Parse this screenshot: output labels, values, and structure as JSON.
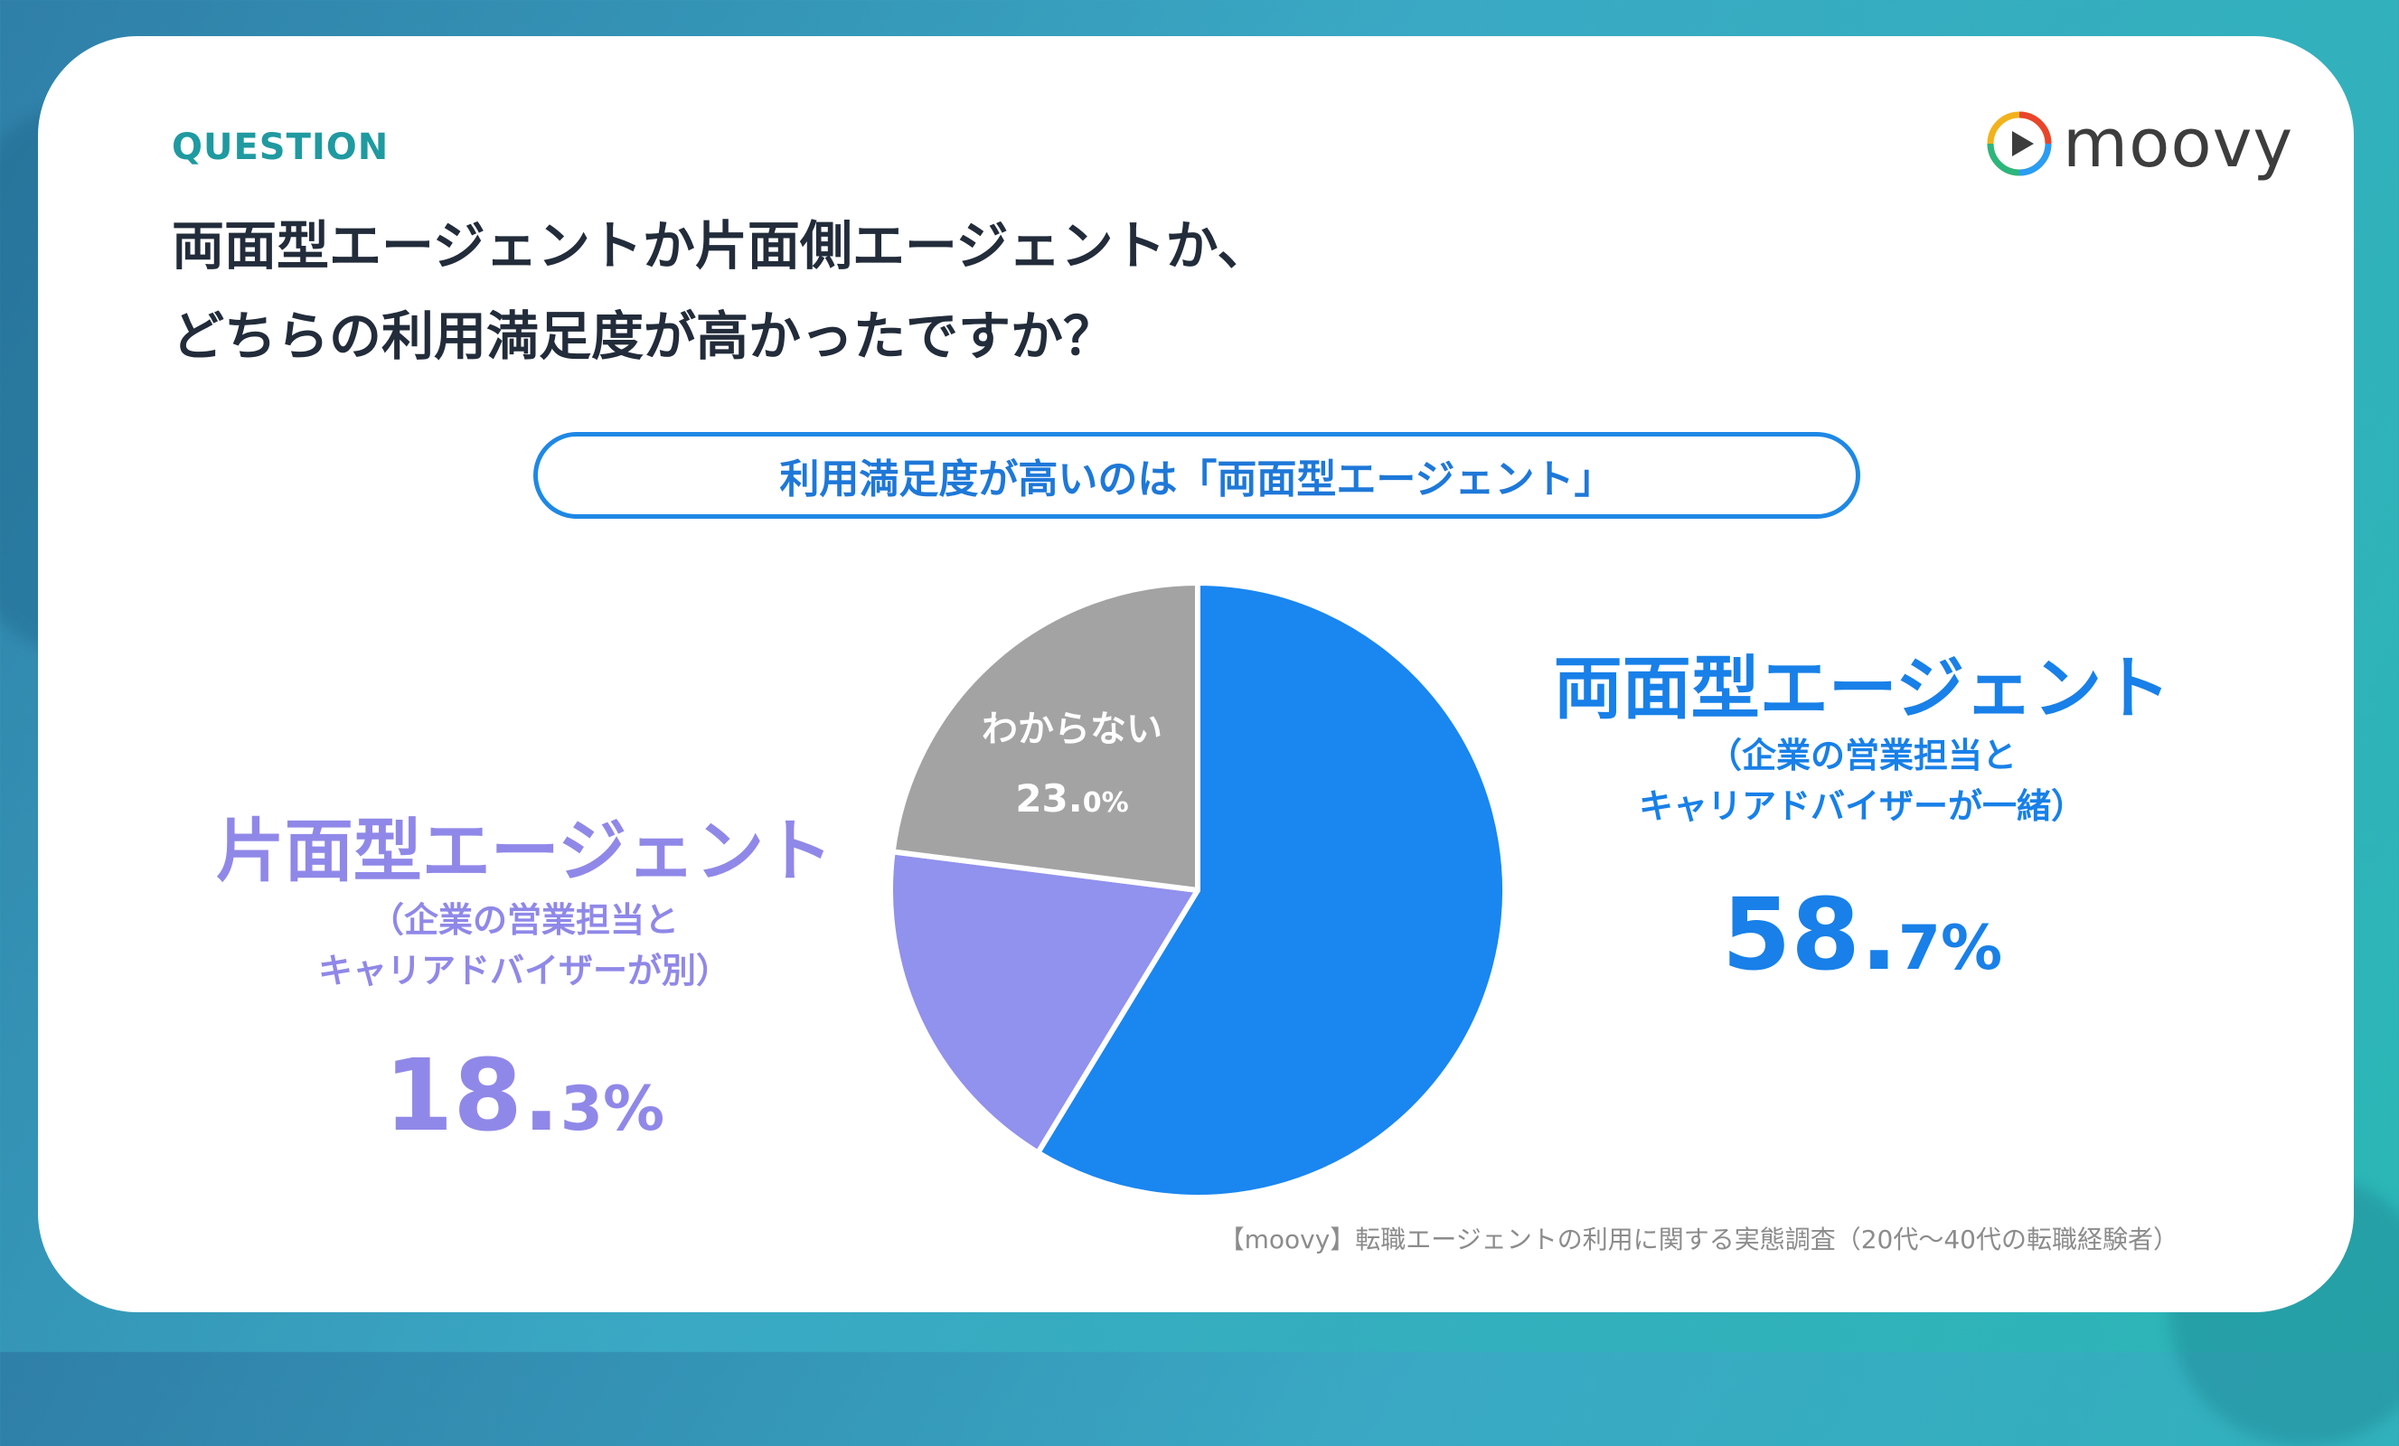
{
  "header": {
    "question_label": "QUESTION",
    "title_line1": "両面型エージェントか片面側エージェントか、",
    "title_line2": "どちらの利用満足度が高かったですか？"
  },
  "logo": {
    "text": "moovy"
  },
  "banner": {
    "text": "利用満足度が高いのは「両面型エージェント」"
  },
  "chart_data": {
    "type": "pie",
    "categories": [
      "両面型エージェント",
      "片面型エージェント",
      "わからない"
    ],
    "values": [
      58.7,
      18.3,
      23.0
    ],
    "colors": [
      "#1a86f0",
      "#9191ee",
      "#a3a3a3"
    ],
    "slices": [
      {
        "name": "両面型エージェント",
        "description_line1": "（企業の営業担当と",
        "description_line2": "キャリアドバイザーが一緒）",
        "value": 58.7,
        "pct_int": "58.",
        "pct_dec": "7",
        "pct_sign": "%",
        "color": "#1a86f0"
      },
      {
        "name": "片面型エージェント",
        "description_line1": "（企業の営業担当と",
        "description_line2": "キャリアドバイザーが別）",
        "value": 18.3,
        "pct_int": "18.",
        "pct_dec": "3",
        "pct_sign": "%",
        "color": "#9191ee"
      },
      {
        "name": "わからない",
        "value": 23.0,
        "pct_int": "23.",
        "pct_dec": "0",
        "pct_sign": "%",
        "color": "#a3a3a3"
      }
    ]
  },
  "source": "【moovy】転職エージェントの利用に関する実態調査（20代〜40代の転職経験者）"
}
